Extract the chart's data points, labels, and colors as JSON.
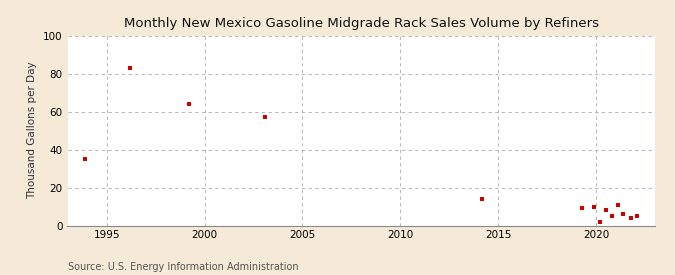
{
  "title": "Monthly New Mexico Gasoline Midgrade Rack Sales Volume by Refiners",
  "ylabel": "Thousand Gallons per Day",
  "source": "Source: U.S. Energy Information Administration",
  "background_color": "#f5ead8",
  "plot_background_color": "#ffffff",
  "marker_color": "#cc0000",
  "marker": "s",
  "marker_size": 3.5,
  "xlim": [
    1993,
    2023
  ],
  "ylim": [
    0,
    100
  ],
  "yticks": [
    0,
    20,
    40,
    60,
    80,
    100
  ],
  "xticks": [
    1995,
    2000,
    2005,
    2010,
    2015,
    2020
  ],
  "data_x": [
    1993.9,
    1996.2,
    1999.2,
    2003.1,
    2014.2,
    2019.3,
    2019.9,
    2020.2,
    2020.5,
    2020.8,
    2021.1,
    2021.4,
    2021.8,
    2022.1
  ],
  "data_y": [
    35,
    83,
    64,
    57,
    14,
    9,
    10,
    2,
    8,
    5,
    11,
    6,
    4,
    5
  ],
  "title_fontsize": 9.5,
  "label_fontsize": 7.5,
  "tick_fontsize": 7.5,
  "source_fontsize": 7
}
